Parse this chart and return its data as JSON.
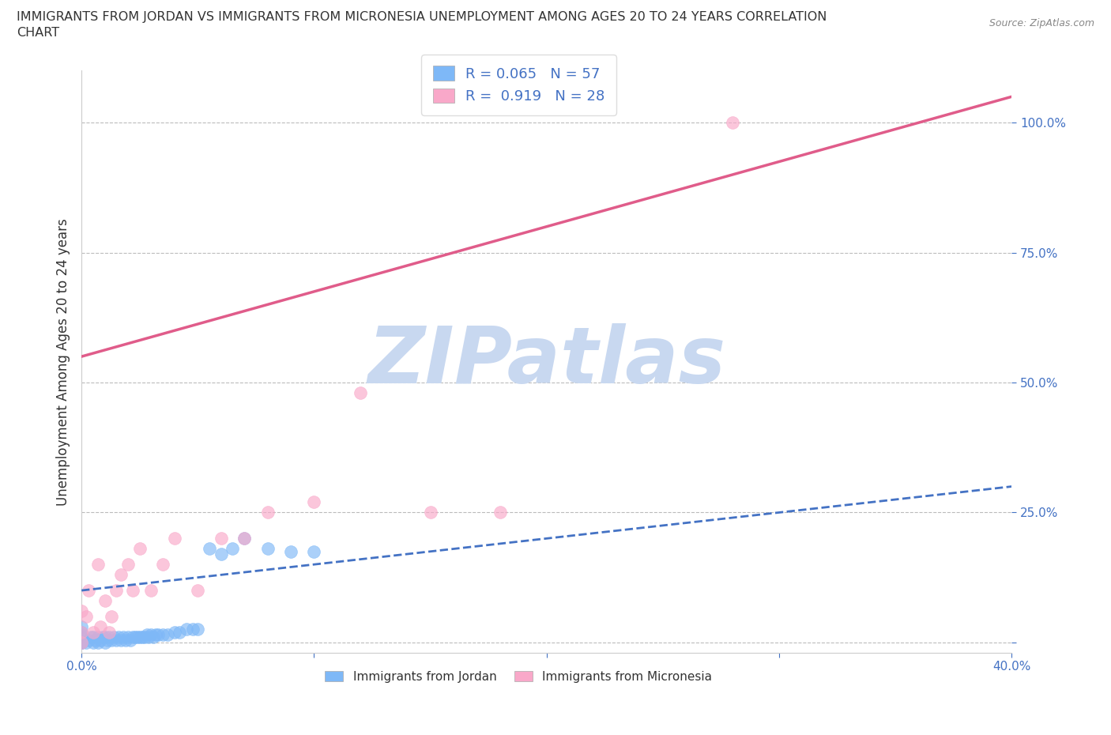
{
  "title": "IMMIGRANTS FROM JORDAN VS IMMIGRANTS FROM MICRONESIA UNEMPLOYMENT AMONG AGES 20 TO 24 YEARS CORRELATION\nCHART",
  "source": "Source: ZipAtlas.com",
  "ylabel": "Unemployment Among Ages 20 to 24 years",
  "xlim": [
    0.0,
    0.4
  ],
  "ylim": [
    -0.02,
    1.1
  ],
  "jordan_color": "#7EB8F7",
  "micronesia_color": "#F9A8C9",
  "jordan_line_color": "#4472C4",
  "micronesia_line_color": "#E05C8A",
  "watermark": "ZIPatlas",
  "watermark_color": "#C8D8F0",
  "legend_jordan_R": "R = 0.065",
  "legend_jordan_N": "N = 57",
  "legend_micronesia_R": "R =  0.919",
  "legend_micronesia_N": "N = 28",
  "jordan_x": [
    0.0,
    0.0,
    0.0,
    0.0,
    0.0,
    0.0,
    0.0,
    0.0,
    0.002,
    0.003,
    0.004,
    0.005,
    0.005,
    0.006,
    0.007,
    0.007,
    0.008,
    0.009,
    0.01,
    0.01,
    0.011,
    0.012,
    0.013,
    0.014,
    0.015,
    0.016,
    0.017,
    0.018,
    0.019,
    0.02,
    0.021,
    0.022,
    0.023,
    0.024,
    0.025,
    0.026,
    0.027,
    0.028,
    0.029,
    0.03,
    0.031,
    0.032,
    0.033,
    0.035,
    0.037,
    0.04,
    0.042,
    0.045,
    0.048,
    0.05,
    0.055,
    0.06,
    0.065,
    0.07,
    0.08,
    0.09,
    0.1
  ],
  "jordan_y": [
    0.0,
    0.0,
    0.0,
    0.0,
    0.01,
    0.015,
    0.02,
    0.03,
    0.0,
    0.005,
    0.01,
    0.0,
    0.01,
    0.005,
    0.0,
    0.01,
    0.005,
    0.01,
    0.0,
    0.01,
    0.005,
    0.01,
    0.005,
    0.01,
    0.005,
    0.01,
    0.005,
    0.01,
    0.005,
    0.01,
    0.005,
    0.01,
    0.01,
    0.01,
    0.01,
    0.01,
    0.01,
    0.015,
    0.01,
    0.015,
    0.01,
    0.015,
    0.015,
    0.015,
    0.015,
    0.02,
    0.02,
    0.025,
    0.025,
    0.025,
    0.18,
    0.17,
    0.18,
    0.2,
    0.18,
    0.175,
    0.175
  ],
  "micronesia_x": [
    0.0,
    0.0,
    0.002,
    0.003,
    0.005,
    0.007,
    0.008,
    0.01,
    0.012,
    0.013,
    0.015,
    0.017,
    0.02,
    0.022,
    0.025,
    0.03,
    0.035,
    0.04,
    0.05,
    0.06,
    0.07,
    0.08,
    0.1,
    0.12,
    0.15,
    0.18,
    0.28,
    0.0
  ],
  "micronesia_y": [
    0.0,
    0.02,
    0.05,
    0.1,
    0.02,
    0.15,
    0.03,
    0.08,
    0.02,
    0.05,
    0.1,
    0.13,
    0.15,
    0.1,
    0.18,
    0.1,
    0.15,
    0.2,
    0.1,
    0.2,
    0.2,
    0.25,
    0.27,
    0.48,
    0.25,
    0.25,
    1.0,
    0.06
  ],
  "jordan_trend": [
    0.1,
    0.3
  ],
  "micronesia_trend_x": [
    0.0,
    0.4
  ],
  "micronesia_trend_y": [
    0.55,
    1.05
  ],
  "background_color": "#FFFFFF",
  "grid_color": "#BBBBBB"
}
